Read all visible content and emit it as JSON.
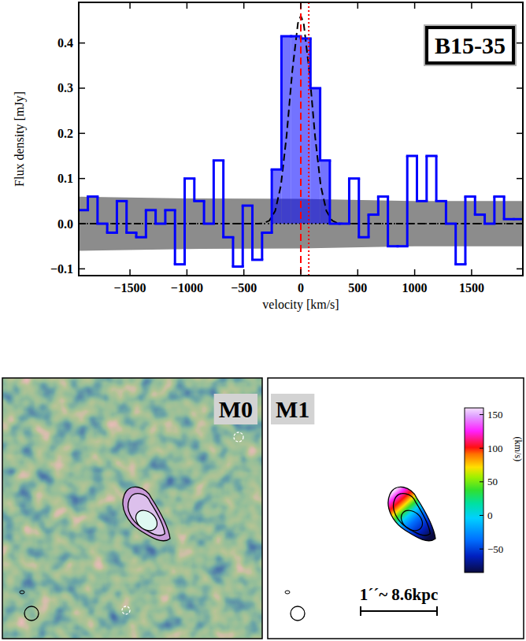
{
  "chart_data": [
    {
      "type": "step",
      "title": "B15-35",
      "x_label": "velocity [km/s]",
      "y_label": "Flux density [mJy]",
      "xlim": [
        -1950,
        1950
      ],
      "ylim": [
        -0.115,
        0.49
      ],
      "xticks": [
        {
          "value": -1500,
          "label": "−1500"
        },
        {
          "value": -1000,
          "label": "−1000"
        },
        {
          "value": -500,
          "label": "−500"
        },
        0,
        500,
        1000,
        1500
      ],
      "yticks": [
        {
          "value": -0.1,
          "label": "−0.1"
        },
        {
          "value": 0,
          "label": "0.0"
        },
        0.1,
        0.2,
        0.3,
        0.4
      ],
      "series": [
        {
          "type": "step",
          "color": "#0000ff",
          "bins": [
            -1955,
            -1870,
            -1785,
            -1700,
            -1615,
            -1530,
            -1445,
            -1360,
            -1275,
            -1190,
            -1105,
            -1020,
            -935,
            -850,
            -765,
            -680,
            -595,
            -510,
            -425,
            -340,
            -255,
            -170,
            -85,
            0,
            85,
            170,
            255,
            340,
            425,
            510,
            595,
            680,
            765,
            850,
            935,
            1020,
            1105,
            1190,
            1275,
            1360,
            1445,
            1530,
            1615,
            1700,
            1785,
            1870,
            1955
          ],
          "values": [
            0.03,
            0.06,
            0.0,
            -0.02,
            0.05,
            -0.02,
            -0.03,
            0.03,
            0.0,
            0.03,
            -0.09,
            0.1,
            0.05,
            0.0,
            0.14,
            -0.03,
            -0.095,
            0.04,
            -0.08,
            -0.02,
            0.12,
            0.415,
            0.415,
            0.41,
            0.3,
            0.14,
            0.0,
            0.0,
            0.1,
            -0.03,
            0.02,
            0.06,
            -0.05,
            -0.05,
            0.15,
            0.05,
            0.15,
            0.05,
            0.0,
            -0.09,
            0.06,
            0.02,
            0.0,
            0.06,
            0.01,
            0.01
          ],
          "integration_range": [
            -255,
            255
          ]
        },
        {
          "type": "line",
          "color": "#000000",
          "line_style": "dashed",
          "x": [
            -1950,
            -375,
            -325,
            -275,
            -225,
            -175,
            -125,
            -75,
            -25,
            0,
            25,
            75,
            125,
            175,
            225,
            275,
            325,
            375,
            1950
          ],
          "values": [
            0,
            0,
            0.001,
            0.007,
            0.028,
            0.084,
            0.194,
            0.337,
            0.444,
            0.46,
            0.444,
            0.337,
            0.194,
            0.084,
            0.028,
            0.007,
            0.001,
            0,
            0
          ]
        },
        {
          "type": "band",
          "color": "#8c8c8c",
          "x": [
            -1950,
            -1000,
            0,
            1000,
            1950
          ],
          "values": [
            0.06,
            0.056,
            0.055,
            0.05,
            0.05
          ],
          "lower": [
            -0.06,
            -0.056,
            -0.055,
            -0.05,
            -0.05
          ]
        }
      ],
      "vlines": [
        {
          "value": 0,
          "color": "#ff0000",
          "line_style": "dashed"
        },
        {
          "value": 70,
          "color": "#ff0000",
          "line_style": "dotted"
        }
      ],
      "hlines": [
        {
          "value": 0,
          "color": "#000000",
          "line_style": "dotted"
        }
      ]
    },
    {
      "type": "image",
      "title": "M0"
    },
    {
      "type": "image",
      "title": "M1",
      "scale_bar_label": "1´´~ 8.6kpc",
      "colorbar": {
        "clim": [
          -85,
          160
        ],
        "cticks": [
          {
            "value": -50,
            "label": "−50"
          },
          0,
          50,
          100,
          150
        ],
        "label": "(km/s)"
      }
    }
  ]
}
